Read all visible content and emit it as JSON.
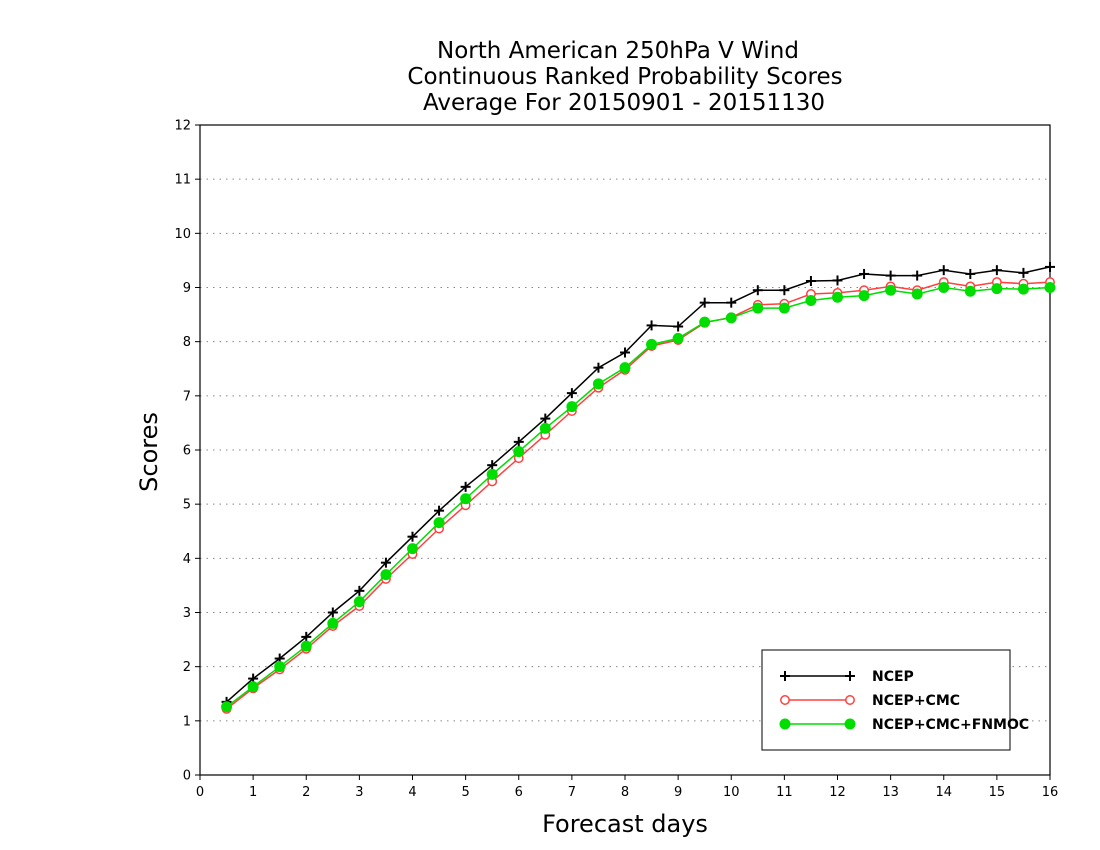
{
  "chart_data": {
    "type": "line",
    "title": [
      "North American 250hPa V Wind",
      "Continuous Ranked Probability Scores",
      "Average For 20150901 - 20151130"
    ],
    "xlabel": "Forecast days",
    "ylabel": "Scores",
    "xlim": [
      0,
      16
    ],
    "ylim": [
      0,
      12
    ],
    "xticks": [
      "0",
      "1",
      "2",
      "3",
      "4",
      "5",
      "6",
      "7",
      "8",
      "9",
      "10",
      "11",
      "12",
      "13",
      "14",
      "15",
      "16"
    ],
    "yticks": [
      "0",
      "1",
      "2",
      "3",
      "4",
      "5",
      "6",
      "7",
      "8",
      "9",
      "10",
      "11",
      "12"
    ],
    "grid": "horizontal-dotted",
    "legend_position": "bottom-right",
    "x": [
      0.5,
      1,
      1.5,
      2,
      2.5,
      3,
      3.5,
      4,
      4.5,
      5,
      5.5,
      6,
      6.5,
      7,
      7.5,
      8,
      8.5,
      9,
      9.5,
      10,
      10.5,
      11,
      11.5,
      12,
      12.5,
      13,
      13.5,
      14,
      14.5,
      15,
      15.5,
      16
    ],
    "series": [
      {
        "name": "NCEP",
        "color": "#000000",
        "marker": "plus",
        "values": [
          1.35,
          1.78,
          2.15,
          2.55,
          3.0,
          3.4,
          3.92,
          4.4,
          4.88,
          5.32,
          5.72,
          6.15,
          6.58,
          7.05,
          7.52,
          7.8,
          8.3,
          8.28,
          8.72,
          8.72,
          8.95,
          8.95,
          9.12,
          9.13,
          9.25,
          9.22,
          9.22,
          9.32,
          9.25,
          9.32,
          9.27,
          9.38
        ]
      },
      {
        "name": "NCEP+CMC",
        "color": "#ff4040",
        "marker": "open-circle",
        "values": [
          1.22,
          1.6,
          1.95,
          2.33,
          2.75,
          3.12,
          3.62,
          4.08,
          4.55,
          4.98,
          5.42,
          5.85,
          6.28,
          6.72,
          7.15,
          7.48,
          7.92,
          8.03,
          8.35,
          8.45,
          8.68,
          8.7,
          8.88,
          8.9,
          8.95,
          9.02,
          8.95,
          9.1,
          9.02,
          9.1,
          9.07,
          9.1
        ]
      },
      {
        "name": "NCEP+CMC+FNMOC",
        "color": "#00dd00",
        "marker": "filled-circle",
        "values": [
          1.26,
          1.63,
          2.0,
          2.38,
          2.8,
          3.2,
          3.7,
          4.18,
          4.66,
          5.1,
          5.55,
          5.97,
          6.4,
          6.8,
          7.22,
          7.52,
          7.95,
          8.06,
          8.36,
          8.44,
          8.62,
          8.62,
          8.76,
          8.82,
          8.85,
          8.95,
          8.88,
          9.0,
          8.93,
          8.98,
          8.97,
          9.0
        ]
      }
    ]
  }
}
